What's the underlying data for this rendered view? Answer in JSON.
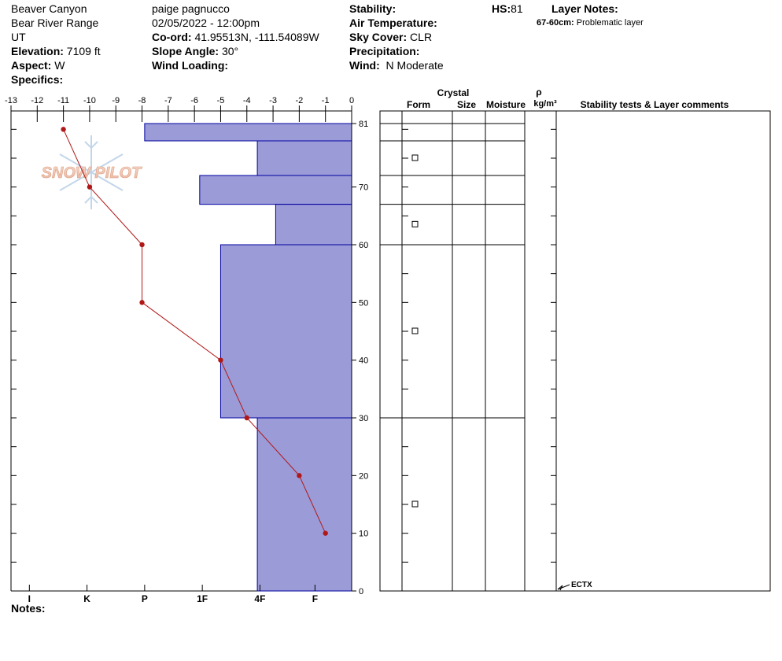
{
  "header": {
    "location": "Beaver Canyon",
    "range": "Bear River Range",
    "state": "UT",
    "elevation_label": "Elevation:",
    "elevation": "7109 ft",
    "aspect_label": "Aspect:",
    "aspect": "W",
    "specifics_label": "Specifics:",
    "observer": "paige pagnucco",
    "datetime": "02/05/2022 - 12:00pm",
    "coord_label": "Co-ord:",
    "coord": "41.95513N, -111.54089W",
    "slope_label": "Slope Angle:",
    "slope": "30°",
    "wind_loading_label": "Wind Loading:",
    "stability_label": "Stability:",
    "air_temp_label": "Air Temperature:",
    "sky_label": "Sky Cover:",
    "sky": "CLR",
    "precip_label": "Precipitation:",
    "wind_label": "Wind:",
    "wind": "N Moderate",
    "hs_label": "HS:",
    "hs": "81",
    "layer_notes_label": "Layer Notes:",
    "layer_note_range": "67-60cm:",
    "layer_note_text": "Problematic layer"
  },
  "notes_label": "Notes:",
  "logo_text": "SNOW PILOT",
  "chart_data": {
    "type": "snow-profile",
    "temperature_axis": {
      "range": [
        -13,
        0
      ],
      "ticks": [
        -13,
        -12,
        -11,
        -10,
        -9,
        -8,
        -7,
        -6,
        -5,
        -4,
        -3,
        -2,
        -1,
        0
      ]
    },
    "depth_axis": {
      "range": [
        0,
        81
      ],
      "ticks": [
        0,
        10,
        20,
        30,
        40,
        50,
        60,
        70,
        81
      ]
    },
    "hardness_ticks": [
      {
        "label": "I",
        "temp": -12.3
      },
      {
        "label": "K",
        "temp": -10.1
      },
      {
        "label": "P",
        "temp": -7.9
      },
      {
        "label": "1F",
        "temp": -5.7
      },
      {
        "label": "4F",
        "temp": -3.5
      },
      {
        "label": "F",
        "temp": -1.4
      }
    ],
    "layers": [
      {
        "top": 81,
        "bottom": 78,
        "hardness_temp": -7.9
      },
      {
        "top": 78,
        "bottom": 72,
        "hardness_temp": -3.6
      },
      {
        "top": 72,
        "bottom": 67,
        "hardness_temp": -5.8
      },
      {
        "top": 67,
        "bottom": 60,
        "hardness_temp": -2.9
      },
      {
        "top": 60,
        "bottom": 30,
        "hardness_temp": -5.0
      },
      {
        "top": 30,
        "bottom": 0,
        "hardness_temp": -3.6
      }
    ],
    "temperature_profile": [
      {
        "depth": 80,
        "temp": -11
      },
      {
        "depth": 70,
        "temp": -10
      },
      {
        "depth": 60,
        "temp": -8
      },
      {
        "depth": 50,
        "temp": -8
      },
      {
        "depth": 40,
        "temp": -5
      },
      {
        "depth": 30,
        "temp": -4
      },
      {
        "depth": 20,
        "temp": -2
      },
      {
        "depth": 10,
        "temp": -1
      }
    ],
    "columns": {
      "crystal": "Crystal",
      "form": "Form",
      "size": "Size",
      "moisture": "Moisture",
      "rho": "ρ",
      "density_unit": "kg/m³",
      "comments": "Stability tests & Layer comments"
    },
    "form_symbol_depths": [
      75,
      63.5,
      45,
      15
    ],
    "stability_tests": [
      {
        "label": "ECTX",
        "depth": 0
      }
    ],
    "colors": {
      "layer_fill": "#9b9bd8",
      "layer_stroke": "#0000a0",
      "temp_line": "#b01818"
    }
  }
}
